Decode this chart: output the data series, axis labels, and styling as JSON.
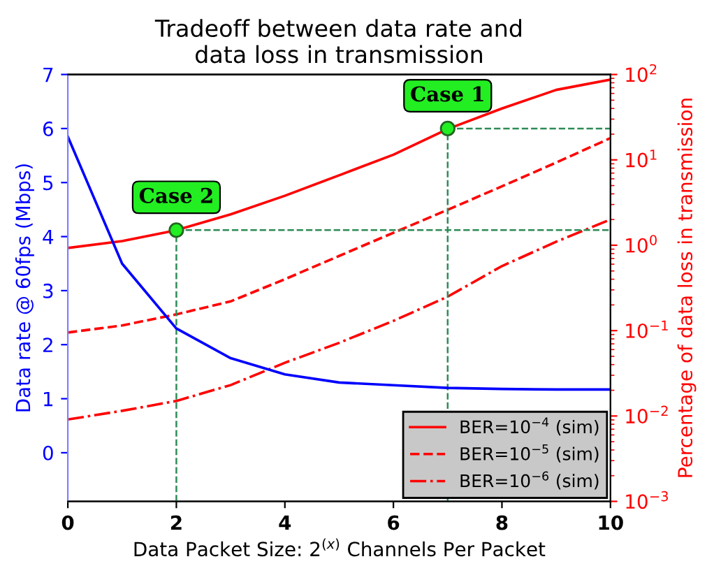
{
  "chart_data": {
    "type": "line",
    "title": "Tradeoff between data rate and\ndata loss in transmission",
    "xlabel": "Data Packet Size: 2$^{(x)}$ Channels Per Packet",
    "ylabel": "Data rate @ 60fps (Mbps)",
    "y2label": "Percentage of data loss in transmission",
    "x": [
      0,
      1,
      2,
      3,
      4,
      5,
      6,
      7,
      8,
      9,
      10
    ],
    "series": [
      {
        "color": "#0000ff",
        "line_style": "solid",
        "values": [
          5.85,
          3.5,
          2.3,
          1.75,
          1.45,
          1.3,
          1.25,
          1.2,
          1.18,
          1.17,
          1.17
        ]
      },
      {
        "name": "BER=10$^{−4}$ (sim)",
        "color": "#ff0000",
        "axis": "y2",
        "line_style": "solid",
        "values": [
          0.93,
          1.12,
          1.5,
          2.3,
          3.8,
          6.6,
          11.5,
          23,
          40,
          66,
          87
        ]
      },
      {
        "name": "BER=10$^{−5}$ (sim)",
        "color": "#ff0000",
        "axis": "y2",
        "line_style": "dashed",
        "values": [
          0.095,
          0.115,
          0.155,
          0.22,
          0.4,
          0.75,
          1.4,
          2.6,
          4.9,
          9.3,
          18
        ]
      },
      {
        "name": "BER=10$^{−6}$ (sim)",
        "color": "#ff0000",
        "axis": "y2",
        "line_style": "dashdot",
        "values": [
          0.0091,
          0.0115,
          0.015,
          0.023,
          0.042,
          0.072,
          0.13,
          0.25,
          0.57,
          1.1,
          2.0
        ]
      }
    ],
    "xlim": [
      0,
      10
    ],
    "xticks": [
      0,
      2,
      4,
      6,
      8,
      10
    ],
    "ylim": [
      -0.9,
      7
    ],
    "yticks": [
      0,
      1,
      2,
      3,
      4,
      5,
      6,
      7
    ],
    "log": "y2",
    "y2lim": [
      0.001,
      100
    ],
    "y2ticks": [
      {
        "value": 0.001,
        "label": "10$^{−3}$"
      },
      {
        "value": 0.01,
        "label": "10$^{−2}$"
      },
      {
        "value": 0.1,
        "label": "10$^{−1}$"
      },
      {
        "value": 1,
        "label": "10$^{0}$"
      },
      {
        "value": 10,
        "label": "10$^{1}$"
      },
      {
        "value": 100,
        "label": "10$^{2}$"
      }
    ],
    "ref_lines": [
      {
        "axis": "x",
        "value": 2,
        "color": "#2e8b57",
        "line_style": "dashed"
      },
      {
        "axis": "y",
        "value": 4.12,
        "color": "#2e8b57",
        "line_style": "dashed"
      },
      {
        "axis": "x",
        "value": 7,
        "color": "#2e8b57",
        "line_style": "dashed"
      },
      {
        "axis": "y",
        "value": 6.0,
        "color": "#2e8b57",
        "line_style": "dashed"
      }
    ],
    "annotations": [
      {
        "text": "Case 2",
        "x": 2,
        "y": 4.12
      },
      {
        "text": "Case 1",
        "x": 7,
        "y": 6.0
      }
    ],
    "legend": "bottom right",
    "grid": false
  }
}
